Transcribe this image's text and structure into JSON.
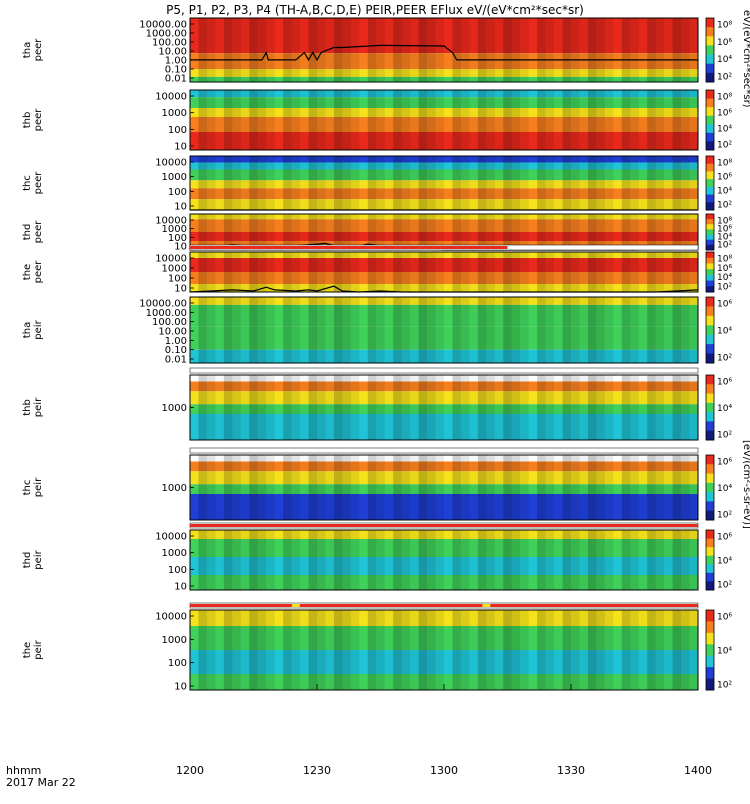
{
  "figure": {
    "title": "P5, P1, P2, P3, P4 (TH-A,B,C,D,E) PEIR,PEER EFlux eV/(eV*cm²*sec*sr)",
    "time_axis": {
      "label_line1": "hhmm",
      "label_line2": "2017 Mar 22",
      "ticks": [
        "1200",
        "1230",
        "1300",
        "1330",
        "1400"
      ],
      "tick_minutes": [
        0,
        30,
        60,
        90,
        120
      ]
    },
    "colorbar_unit_upper": "eV/(eV*cm²*sec*sr)",
    "colorbar_unit_lower": "[eV/(cm²-s-sr-eV)]",
    "colors": {
      "red": "#e8291c",
      "orange": "#f77f1e",
      "yellow": "#f5e21b",
      "green": "#3fd15a",
      "cyan": "#1fc4d6",
      "blue": "#1f3fd6",
      "navy": "#111a7a",
      "black": "#000000",
      "white": "#ffffff"
    }
  },
  "chart_data": [
    {
      "type": "heatmap",
      "panel": "tha-peer",
      "ylabel": [
        "tha",
        "peer"
      ],
      "yticks": [
        "10000.00",
        "1000.00",
        "100.00",
        "10.00",
        "1.00",
        "0.10",
        "0.01"
      ],
      "yscale": "log",
      "colorbar_ticks": [
        "10⁸",
        "10⁶",
        "10⁴",
        "10²"
      ],
      "has_overlay_line": true,
      "overlay_line_minutes": [
        0,
        17,
        18,
        18.5,
        25,
        27,
        28,
        29,
        30,
        31,
        34,
        36,
        45,
        60,
        62,
        63,
        85,
        88,
        120
      ],
      "overlay_line_values": [
        1.5,
        1.5,
        8,
        1.5,
        1.5,
        8,
        1.5,
        8,
        1.5,
        8,
        25,
        25,
        40,
        35,
        8,
        1.5,
        1.5,
        1.5,
        1.5
      ],
      "mode_bar": false
    },
    {
      "type": "heatmap",
      "panel": "thb-peer",
      "ylabel": [
        "thb",
        "peer"
      ],
      "yticks": [
        "10000",
        "1000",
        "100",
        "10"
      ],
      "yscale": "log",
      "colorbar_ticks": [
        "10⁸",
        "10⁶",
        "10⁴",
        "10²"
      ],
      "has_overlay_line": false,
      "mode_bar": false
    },
    {
      "type": "heatmap",
      "panel": "thc-peer",
      "ylabel": [
        "thc",
        "peer"
      ],
      "yticks": [
        "10000",
        "1000",
        "100",
        "10"
      ],
      "yscale": "log",
      "colorbar_ticks": [
        "10⁸",
        "10⁶",
        "10⁴",
        "10²"
      ],
      "has_overlay_line": true,
      "overlay_line_minutes": [
        0,
        120
      ],
      "overlay_line_values": [
        10,
        10
      ],
      "mode_bar": false
    },
    {
      "type": "heatmap",
      "panel": "thd-peer",
      "ylabel": [
        "thd",
        "peer"
      ],
      "yticks": [
        "10000",
        "1000",
        "100",
        "10"
      ],
      "yscale": "log",
      "colorbar_ticks": [
        "10⁸",
        "10⁶",
        "10⁴",
        "10²"
      ],
      "has_overlay_line": true,
      "overlay_line_minutes": [
        0,
        5,
        10,
        15,
        20,
        25,
        28,
        32,
        35,
        38,
        42,
        45,
        50,
        55,
        60,
        70,
        90,
        105,
        112,
        118,
        120
      ],
      "overlay_line_values": [
        20,
        15,
        30,
        20,
        15,
        25,
        30,
        40,
        20,
        15,
        35,
        25,
        15,
        12,
        10,
        10,
        10,
        10,
        12,
        18,
        22
      ],
      "mode_bar": false
    },
    {
      "type": "heatmap",
      "panel": "the-peer",
      "ylabel": [
        "the",
        "peer"
      ],
      "yticks": [
        "10000",
        "1000",
        "100",
        "10"
      ],
      "yscale": "log",
      "colorbar_ticks": [
        "10⁸",
        "10⁶",
        "10⁴",
        "10²"
      ],
      "has_overlay_line": true,
      "overlay_line_minutes": [
        0,
        5,
        10,
        15,
        18,
        20,
        25,
        28,
        30,
        34,
        36,
        40,
        45,
        50,
        55,
        60,
        75,
        100,
        110,
        115,
        120
      ],
      "overlay_line_values": [
        10,
        12,
        15,
        12,
        25,
        15,
        12,
        15,
        12,
        30,
        12,
        10,
        12,
        10,
        10,
        10,
        10,
        10,
        10,
        12,
        15
      ],
      "mode_bar": true,
      "mode_bar_red_end_minutes": 75
    },
    {
      "type": "heatmap",
      "panel": "tha-peir",
      "ylabel": [
        "tha",
        "peir"
      ],
      "yticks": [
        "10000.00",
        "1000.00",
        "100.00",
        "10.00",
        "1.00",
        "0.10",
        "0.01"
      ],
      "yscale": "log",
      "colorbar_ticks": [
        "10⁶",
        "10⁴",
        "10²"
      ],
      "has_overlay_line": false,
      "mode_bar": false
    },
    {
      "type": "heatmap",
      "panel": "thb-peir",
      "ylabel": [
        "thb",
        "peir"
      ],
      "yticks": [
        "1000"
      ],
      "yscale": "log",
      "colorbar_ticks": [
        "10⁶",
        "10⁴",
        "10²"
      ],
      "has_overlay_line": false,
      "mode_bar": true,
      "mode_bar_red_end_minutes": 0
    },
    {
      "type": "heatmap",
      "panel": "thc-peir",
      "ylabel": [
        "thc",
        "peir"
      ],
      "yticks": [
        "1000"
      ],
      "yscale": "log",
      "colorbar_ticks": [
        "10⁶",
        "10⁴",
        "10²"
      ],
      "has_overlay_line": false,
      "mode_bar": true,
      "mode_bar_red_end_minutes": 0
    },
    {
      "type": "heatmap",
      "panel": "thd-peir",
      "ylabel": [
        "thd",
        "peir"
      ],
      "yticks": [
        "10000",
        "1000",
        "100",
        "10"
      ],
      "yscale": "log",
      "colorbar_ticks": [
        "10⁶",
        "10⁴",
        "10²"
      ],
      "has_overlay_line": false,
      "mode_bar": true,
      "mode_bar_red_end_minutes": 120
    },
    {
      "type": "heatmap",
      "panel": "the-peir",
      "ylabel": [
        "the",
        "peir"
      ],
      "yticks": [
        "10000",
        "1000",
        "100",
        "10"
      ],
      "yscale": "log",
      "colorbar_ticks": [
        "10⁶",
        "10⁴",
        "10²"
      ],
      "has_overlay_line": false,
      "mode_bar": true,
      "mode_bar_red_end_minutes": 120,
      "mode_bar_yellow_minutes": [
        25,
        70
      ]
    }
  ]
}
